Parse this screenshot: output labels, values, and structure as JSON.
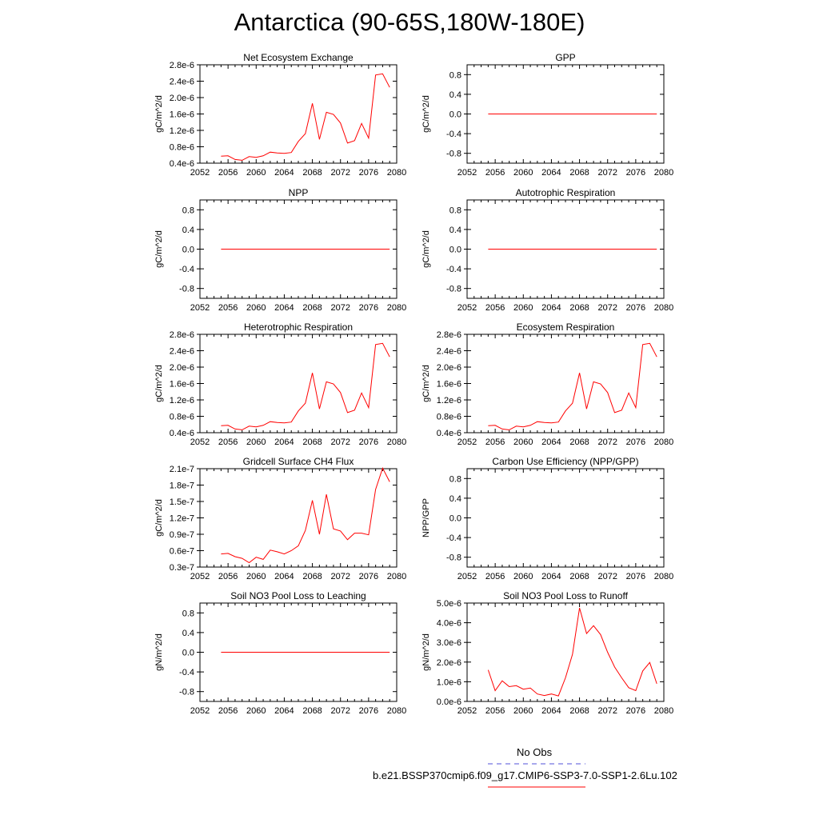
{
  "title": "Antarctica (90-65S,180W-180E)",
  "legend": {
    "obs_label": "No Obs",
    "obs_color": "#5050d8",
    "model_label": "b.e21.BSSP370cmip6.f09_g17.CMIP6-SSP3-7.0-SSP1-2.6Lu.102",
    "model_color": "#ff0000"
  },
  "chart_data": [
    {
      "type": "line",
      "title": "Net Ecosystem Exchange",
      "ylabel": "gC/m^2/d",
      "xlim": [
        2052,
        2080
      ],
      "xticks": [
        "2052",
        "2056",
        "2060",
        "2064",
        "2068",
        "2072",
        "2076",
        "2080"
      ],
      "ylim": [
        4e-07,
        2.8e-06
      ],
      "yticks": [
        "0.4e-6",
        "0.8e-6",
        "1.2e-6",
        "1.6e-6",
        "2.0e-6",
        "2.4e-6",
        "2.8e-6"
      ],
      "series": [
        {
          "color": "#ff0000",
          "x": [
            2055,
            2056,
            2057,
            2058,
            2059,
            2060,
            2061,
            2062,
            2063,
            2064,
            2065,
            2066,
            2067,
            2068,
            2069,
            2070,
            2071,
            2072,
            2073,
            2074,
            2075,
            2076,
            2077,
            2078,
            2079
          ],
          "values": [
            5.7e-07,
            5.8e-07,
            4.9e-07,
            4.7e-07,
            5.6e-07,
            5.4e-07,
            5.8e-07,
            6.7e-07,
            6.5e-07,
            6.4e-07,
            6.6e-07,
            9.3e-07,
            1.12e-06,
            1.86e-06,
            9.8e-07,
            1.64e-06,
            1.59e-06,
            1.38e-06,
            8.9e-07,
            9.5e-07,
            1.37e-06,
            1.01e-06,
            2.55e-06,
            2.58e-06,
            2.25e-06
          ]
        }
      ]
    },
    {
      "type": "line",
      "title": "GPP",
      "ylabel": "gC/m^2/d",
      "xlim": [
        2052,
        2080
      ],
      "xticks": [
        "2052",
        "2056",
        "2060",
        "2064",
        "2068",
        "2072",
        "2076",
        "2080"
      ],
      "ylim": [
        -1.0,
        1.0
      ],
      "yticks": [
        "-0.8",
        "-0.4",
        "0.0",
        "0.4",
        "0.8"
      ],
      "series": [
        {
          "color": "#ff0000",
          "x": [
            2055,
            2079
          ],
          "values": [
            0,
            0
          ]
        }
      ]
    },
    {
      "type": "line",
      "title": "NPP",
      "ylabel": "gC/m^2/d",
      "xlim": [
        2052,
        2080
      ],
      "xticks": [
        "2052",
        "2056",
        "2060",
        "2064",
        "2068",
        "2072",
        "2076",
        "2080"
      ],
      "ylim": [
        -1.0,
        1.0
      ],
      "yticks": [
        "-0.8",
        "-0.4",
        "0.0",
        "0.4",
        "0.8"
      ],
      "series": [
        {
          "color": "#ff0000",
          "x": [
            2055,
            2079
          ],
          "values": [
            0,
            0
          ]
        }
      ]
    },
    {
      "type": "line",
      "title": "Autotrophic Respiration",
      "ylabel": "gC/m^2/d",
      "xlim": [
        2052,
        2080
      ],
      "xticks": [
        "2052",
        "2056",
        "2060",
        "2064",
        "2068",
        "2072",
        "2076",
        "2080"
      ],
      "ylim": [
        -1.0,
        1.0
      ],
      "yticks": [
        "-0.8",
        "-0.4",
        "0.0",
        "0.4",
        "0.8"
      ],
      "series": [
        {
          "color": "#ff0000",
          "x": [
            2055,
            2079
          ],
          "values": [
            0,
            0
          ]
        }
      ]
    },
    {
      "type": "line",
      "title": "Heterotrophic Respiration",
      "ylabel": "gC/m^2/d",
      "xlim": [
        2052,
        2080
      ],
      "xticks": [
        "2052",
        "2056",
        "2060",
        "2064",
        "2068",
        "2072",
        "2076",
        "2080"
      ],
      "ylim": [
        4e-07,
        2.8e-06
      ],
      "yticks": [
        "0.4e-6",
        "0.8e-6",
        "1.2e-6",
        "1.6e-6",
        "2.0e-6",
        "2.4e-6",
        "2.8e-6"
      ],
      "series": [
        {
          "color": "#ff0000",
          "x": [
            2055,
            2056,
            2057,
            2058,
            2059,
            2060,
            2061,
            2062,
            2063,
            2064,
            2065,
            2066,
            2067,
            2068,
            2069,
            2070,
            2071,
            2072,
            2073,
            2074,
            2075,
            2076,
            2077,
            2078,
            2079
          ],
          "values": [
            5.7e-07,
            5.8e-07,
            4.9e-07,
            4.7e-07,
            5.6e-07,
            5.4e-07,
            5.8e-07,
            6.7e-07,
            6.5e-07,
            6.4e-07,
            6.6e-07,
            9.3e-07,
            1.12e-06,
            1.86e-06,
            9.8e-07,
            1.64e-06,
            1.59e-06,
            1.38e-06,
            8.9e-07,
            9.5e-07,
            1.37e-06,
            1.01e-06,
            2.55e-06,
            2.58e-06,
            2.25e-06
          ]
        }
      ]
    },
    {
      "type": "line",
      "title": "Ecosystem Respiration",
      "ylabel": "gC/m^2/d",
      "xlim": [
        2052,
        2080
      ],
      "xticks": [
        "2052",
        "2056",
        "2060",
        "2064",
        "2068",
        "2072",
        "2076",
        "2080"
      ],
      "ylim": [
        4e-07,
        2.8e-06
      ],
      "yticks": [
        "0.4e-6",
        "0.8e-6",
        "1.2e-6",
        "1.6e-6",
        "2.0e-6",
        "2.4e-6",
        "2.8e-6"
      ],
      "series": [
        {
          "color": "#ff0000",
          "x": [
            2055,
            2056,
            2057,
            2058,
            2059,
            2060,
            2061,
            2062,
            2063,
            2064,
            2065,
            2066,
            2067,
            2068,
            2069,
            2070,
            2071,
            2072,
            2073,
            2074,
            2075,
            2076,
            2077,
            2078,
            2079
          ],
          "values": [
            5.7e-07,
            5.8e-07,
            4.9e-07,
            4.7e-07,
            5.6e-07,
            5.4e-07,
            5.8e-07,
            6.7e-07,
            6.5e-07,
            6.4e-07,
            6.6e-07,
            9.3e-07,
            1.12e-06,
            1.86e-06,
            9.8e-07,
            1.64e-06,
            1.59e-06,
            1.38e-06,
            8.9e-07,
            9.5e-07,
            1.37e-06,
            1.01e-06,
            2.55e-06,
            2.58e-06,
            2.25e-06
          ]
        }
      ]
    },
    {
      "type": "line",
      "title": "Gridcell Surface CH4 Flux",
      "ylabel": "gC/m^2/d",
      "xlim": [
        2052,
        2080
      ],
      "xticks": [
        "2052",
        "2056",
        "2060",
        "2064",
        "2068",
        "2072",
        "2076",
        "2080"
      ],
      "ylim": [
        3e-08,
        2.1e-07
      ],
      "yticks": [
        "0.3e-7",
        "0.6e-7",
        "0.9e-7",
        "1.2e-7",
        "1.5e-7",
        "1.8e-7",
        "2.1e-7"
      ],
      "series": [
        {
          "color": "#ff0000",
          "x": [
            2055,
            2056,
            2057,
            2058,
            2059,
            2060,
            2061,
            2062,
            2063,
            2064,
            2065,
            2066,
            2067,
            2068,
            2069,
            2070,
            2071,
            2072,
            2073,
            2074,
            2075,
            2076,
            2077,
            2078,
            2079
          ],
          "values": [
            5.4e-08,
            5.5e-08,
            4.9e-08,
            4.6e-08,
            3.8e-08,
            4.8e-08,
            4.4e-08,
            6.1e-08,
            5.8e-08,
            5.4e-08,
            6e-08,
            6.9e-08,
            9.7e-08,
            1.52e-07,
            9e-08,
            1.63e-07,
            1e-07,
            9.6e-08,
            8e-08,
            9.2e-08,
            9.2e-08,
            8.9e-08,
            1.72e-07,
            2.11e-07,
            1.86e-07
          ]
        }
      ]
    },
    {
      "type": "line",
      "title": "Carbon Use Efficiency (NPP/GPP)",
      "ylabel": "NPP/GPP",
      "xlim": [
        2052,
        2080
      ],
      "xticks": [
        "2052",
        "2056",
        "2060",
        "2064",
        "2068",
        "2072",
        "2076",
        "2080"
      ],
      "ylim": [
        -1.0,
        1.0
      ],
      "yticks": [
        "-0.8",
        "-0.4",
        "0.0",
        "0.4",
        "0.8"
      ],
      "series": []
    },
    {
      "type": "line",
      "title": "Soil NO3 Pool Loss to Leaching",
      "ylabel": "gN/m^2/d",
      "xlim": [
        2052,
        2080
      ],
      "xticks": [
        "2052",
        "2056",
        "2060",
        "2064",
        "2068",
        "2072",
        "2076",
        "2080"
      ],
      "ylim": [
        -1.0,
        1.0
      ],
      "yticks": [
        "-0.8",
        "-0.4",
        "0.0",
        "0.4",
        "0.8"
      ],
      "series": [
        {
          "color": "#ff0000",
          "x": [
            2055,
            2079
          ],
          "values": [
            0,
            0
          ]
        }
      ]
    },
    {
      "type": "line",
      "title": "Soil NO3 Pool Loss to Runoff",
      "ylabel": "gN/m^2/d",
      "xlim": [
        2052,
        2080
      ],
      "xticks": [
        "2052",
        "2056",
        "2060",
        "2064",
        "2068",
        "2072",
        "2076",
        "2080"
      ],
      "ylim": [
        0.0,
        5e-06
      ],
      "yticks": [
        "0.0e-6",
        "1.0e-6",
        "2.0e-6",
        "3.0e-6",
        "4.0e-6",
        "5.0e-6"
      ],
      "series": [
        {
          "color": "#ff0000",
          "x": [
            2055,
            2056,
            2057,
            2058,
            2059,
            2060,
            2061,
            2062,
            2063,
            2064,
            2065,
            2066,
            2067,
            2068,
            2069,
            2070,
            2071,
            2072,
            2073,
            2074,
            2075,
            2076,
            2077,
            2078,
            2079
          ],
          "values": [
            1.6e-06,
            5.5e-07,
            1.05e-06,
            7.5e-07,
            8e-07,
            6.2e-07,
            6.8e-07,
            3.8e-07,
            3e-07,
            3.8e-07,
            2.8e-07,
            1.2e-06,
            2.4e-06,
            4.75e-06,
            3.45e-06,
            3.85e-06,
            3.4e-06,
            2.5e-06,
            1.75e-06,
            1.2e-06,
            7e-07,
            5.5e-07,
            1.55e-06,
            1.98e-06,
            9e-07
          ]
        }
      ]
    }
  ]
}
